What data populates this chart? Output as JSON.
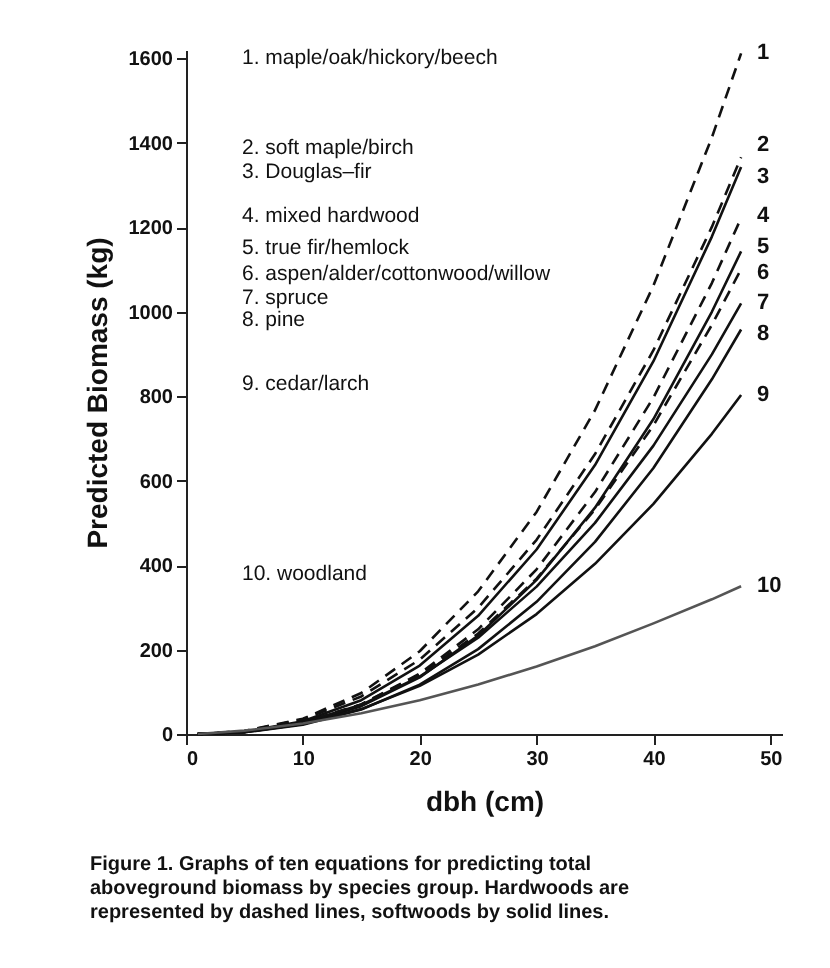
{
  "chart_data": {
    "type": "line",
    "xlabel": "dbh (cm)",
    "ylabel": "Predicted Biomass (kg)",
    "x": [
      1,
      5,
      10,
      15,
      20,
      25,
      30,
      35,
      40,
      45,
      47.5
    ],
    "xlim": [
      0,
      51
    ],
    "ylim": [
      0,
      1620
    ],
    "xticks": [
      0,
      10,
      20,
      30,
      40,
      50
    ],
    "yticks": [
      0,
      200,
      400,
      600,
      800,
      1000,
      1200,
      1400,
      1600
    ],
    "marker": "none",
    "series": [
      {
        "name": "1",
        "color": "#111111",
        "line_style": "dashed",
        "values": [
          0,
          7,
          36,
          97,
          196,
          338,
          526,
          767,
          1062,
          1413,
          1612
        ]
      },
      {
        "name": "2",
        "color": "#111111",
        "line_style": "dashed",
        "values": [
          0,
          7,
          34,
          89,
          176,
          299,
          460,
          663,
          909,
          1201,
          1366
        ]
      },
      {
        "name": "3",
        "color": "#111111",
        "line_style": "solid",
        "values": [
          0,
          5,
          30,
          80,
          162,
          280,
          437,
          637,
          883,
          1178,
          1343
        ]
      },
      {
        "name": "4",
        "color": "#111111",
        "line_style": "dashed",
        "values": [
          0,
          5,
          26,
          70,
          143,
          248,
          390,
          573,
          797,
          1068,
          1222
        ]
      },
      {
        "name": "5",
        "color": "#111111",
        "line_style": "solid",
        "values": [
          0,
          4,
          24,
          66,
          134,
          233,
          365,
          536,
          746,
          1000,
          1143
        ]
      },
      {
        "name": "6",
        "color": "#111111",
        "line_style": "dashed",
        "values": [
          0,
          5,
          27,
          70,
          140,
          238,
          368,
          532,
          731,
          969,
          1101
        ]
      },
      {
        "name": "7",
        "color": "#111111",
        "line_style": "solid",
        "values": [
          0,
          5,
          27,
          69,
          136,
          228,
          349,
          500,
          683,
          899,
          1020
        ]
      },
      {
        "name": "8",
        "color": "#111111",
        "line_style": "solid",
        "values": [
          0,
          4,
          22,
          58,
          117,
          201,
          313,
          455,
          630,
          840,
          958
        ]
      },
      {
        "name": "9",
        "color": "#111111",
        "line_style": "solid",
        "values": [
          0,
          5,
          24,
          59,
          114,
          188,
          284,
          403,
          545,
          711,
          803
        ]
      },
      {
        "name": "10",
        "color": "#555555",
        "line_style": "solid",
        "values": [
          0,
          8,
          25,
          49,
          80,
          117,
          160,
          208,
          262,
          319,
          350
        ]
      }
    ],
    "annotations": [
      "1. maple/oak/hickory/beech",
      "2. soft maple/birch",
      "3. Douglas–fir",
      "4. mixed hardwood",
      "5. true fir/hemlock",
      "6. aspen/alder/cottonwood/willow",
      "7. spruce",
      "8. pine",
      "9. cedar/larch",
      "10. woodland",
      "Figure 1. Graphs of ten equations for predicting total aboveground biomass by species group. Hardwoods are represented by dashed lines, softwoods by solid lines."
    ]
  }
}
